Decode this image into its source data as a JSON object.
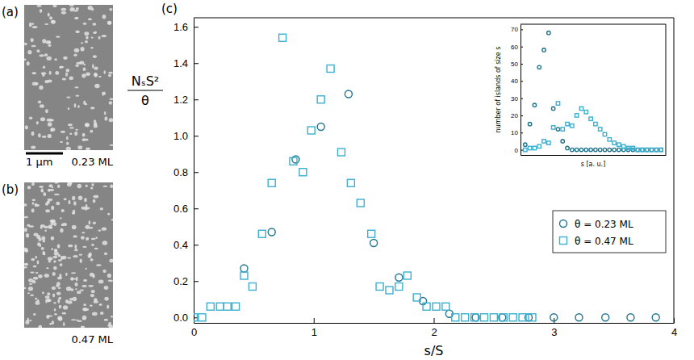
{
  "panels": [
    {
      "label": "(a)",
      "caption": "0.23 ML",
      "scale_bar": "1 µm"
    },
    {
      "label": "(b)",
      "caption": "0.47 ML"
    }
  ],
  "chart_data": [
    {
      "type": "scatter",
      "panel_label": "(c)",
      "xlabel": "s/S",
      "ylabel": [
        "NₛS²",
        "θ"
      ],
      "xlim": [
        0,
        4
      ],
      "xticks": [
        0,
        1,
        2,
        3,
        4
      ],
      "ylim": [
        -0.03,
        1.65
      ],
      "yticks": [
        {
          "value": 0,
          "label": "0.0"
        },
        {
          "value": 0.2,
          "label": "0.2"
        },
        {
          "value": 0.4,
          "label": "0.4"
        },
        {
          "value": 0.6,
          "label": "0.6"
        },
        {
          "value": 0.8,
          "label": "0.8"
        },
        {
          "value": 1.0,
          "label": "1.0"
        },
        {
          "value": 1.2,
          "label": "1.2"
        },
        {
          "value": 1.4,
          "label": "1.4"
        },
        {
          "value": 1.6,
          "label": "1.6"
        }
      ],
      "grid": false,
      "legend": "right",
      "series": [
        {
          "name": "θ = 0.23 ML",
          "color": "#21748c",
          "marker": "circle",
          "x": [
            0.42,
            0.65,
            0.85,
            1.06,
            1.29,
            1.5,
            1.71,
            1.91,
            2.13,
            2.35,
            2.57,
            2.79,
            3.0,
            3.21,
            3.43,
            3.64,
            3.85
          ],
          "values": [
            0.27,
            0.47,
            0.87,
            1.05,
            1.23,
            0.41,
            0.22,
            0.09,
            0.02,
            0,
            0,
            0,
            0,
            0,
            0,
            0,
            0
          ]
        },
        {
          "name": "θ = 0.47 ML",
          "color": "#3bb0d0",
          "marker": "square",
          "x": [
            0,
            0.07,
            0.14,
            0.22,
            0.28,
            0.35,
            0.42,
            0.49,
            0.57,
            0.65,
            0.74,
            0.83,
            0.91,
            0.98,
            1.06,
            1.14,
            1.23,
            1.31,
            1.39,
            1.48,
            1.55,
            1.63,
            1.71,
            1.78,
            1.86,
            1.94,
            2.02,
            2.1,
            2.18,
            2.26,
            2.34,
            2.42,
            2.5,
            2.58,
            2.66,
            2.74,
            2.82
          ],
          "values": [
            0,
            0,
            0.06,
            0.06,
            0.06,
            0.06,
            0.23,
            0.17,
            0.46,
            0.74,
            1.54,
            0.86,
            0.8,
            1.03,
            1.2,
            1.37,
            0.91,
            0.74,
            0.63,
            0.46,
            0.17,
            0.15,
            0.17,
            0.23,
            0.11,
            0.06,
            0.06,
            0.06,
            0,
            0,
            0,
            0,
            0,
            0,
            0,
            0,
            0
          ]
        }
      ]
    },
    {
      "type": "scatter",
      "xlabel": "s [a. u.]",
      "ylabel": "number of islands of size s",
      "xlim": [
        0,
        31
      ],
      "ylim": [
        -3,
        73
      ],
      "yticks": [
        0,
        10,
        20,
        30,
        40,
        50,
        60,
        70
      ],
      "tick_labels": "y",
      "series": [
        {
          "color": "#21748c",
          "marker": "circle",
          "x": [
            1,
            2,
            3,
            4,
            5,
            6,
            7,
            8,
            9,
            10,
            11,
            12,
            13,
            14,
            15,
            16,
            17,
            18,
            19,
            20,
            21,
            22,
            23,
            24,
            25,
            26,
            27,
            28,
            29,
            30
          ],
          "values": [
            3,
            15,
            26,
            48,
            58,
            68,
            24,
            12,
            5,
            1,
            0,
            0,
            0,
            0,
            0,
            0,
            0,
            0,
            0,
            0,
            0,
            0,
            0,
            0,
            0,
            0,
            0,
            0,
            0,
            0
          ]
        },
        {
          "color": "#3bb0d0",
          "marker": "square",
          "x": [
            1,
            2,
            3,
            4,
            5,
            6,
            7,
            8,
            9,
            10,
            11,
            12,
            13,
            14,
            15,
            16,
            17,
            18,
            19,
            20,
            21,
            22,
            23,
            24,
            25,
            26,
            27,
            28,
            29,
            30
          ],
          "values": [
            0,
            1,
            1,
            2,
            5,
            4,
            13,
            27,
            12,
            15,
            14,
            20,
            24,
            22,
            18,
            15,
            12,
            9,
            6,
            4,
            3,
            2,
            1,
            1,
            0,
            0,
            0,
            0,
            0,
            0
          ]
        }
      ]
    }
  ]
}
